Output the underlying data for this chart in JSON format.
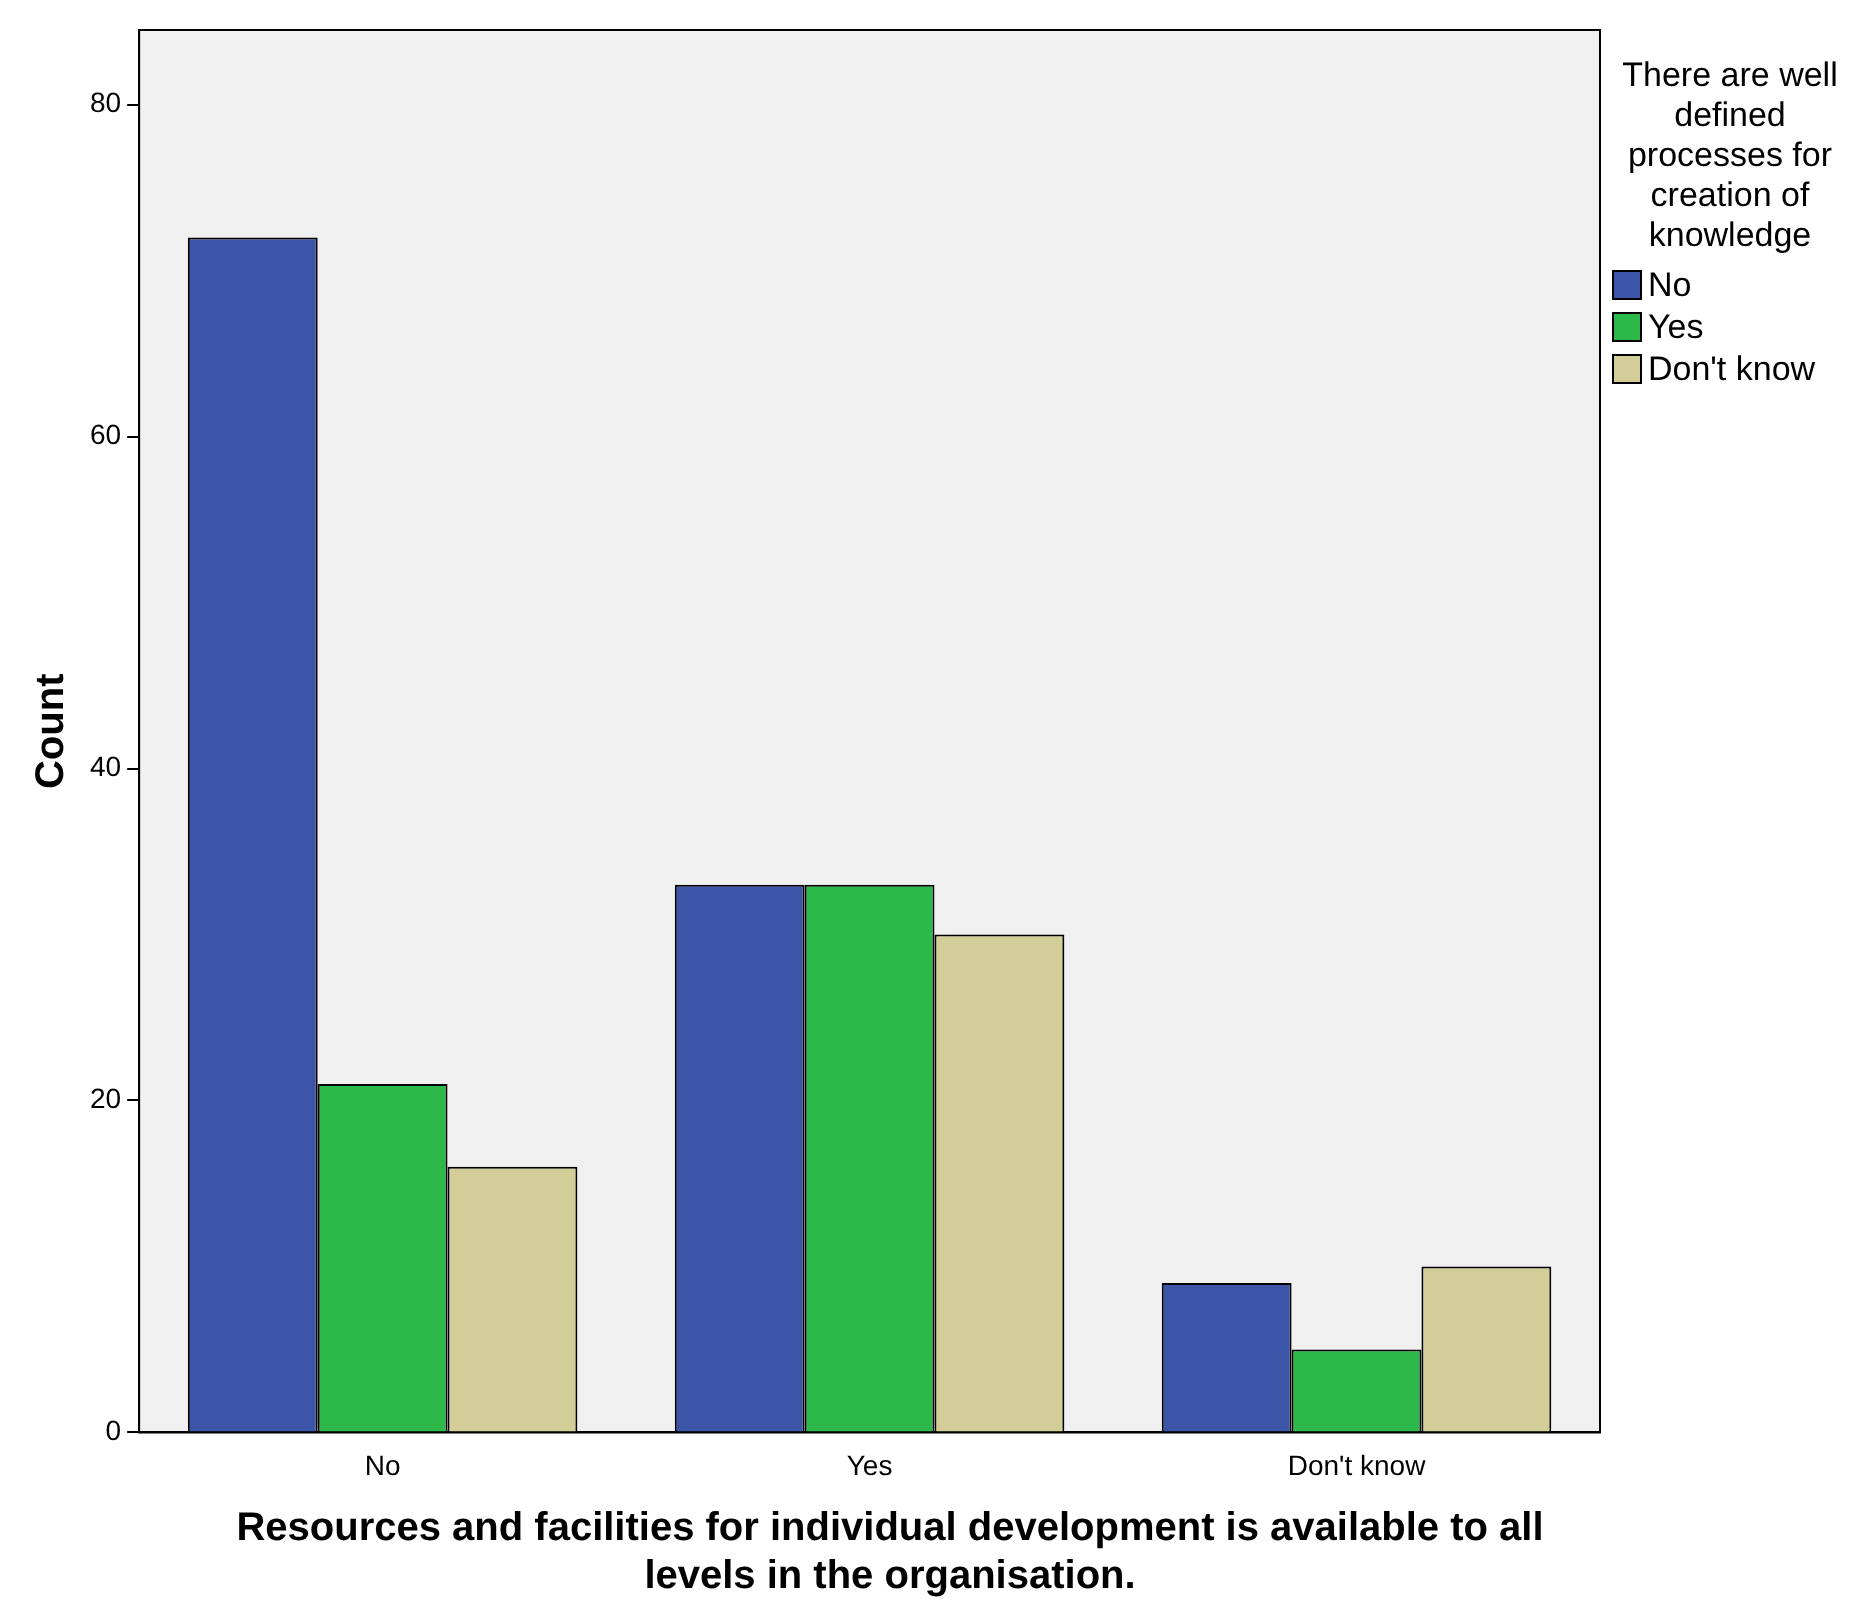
{
  "chart_data": {
    "type": "bar",
    "xlabel": "Resources and facilities for individual development is available to all levels in the organisation.",
    "ylabel": "Count",
    "legend_title": "There are well defined processes for creation of knowledge",
    "categories": [
      "No",
      "Yes",
      "Don't know"
    ],
    "series": [
      {
        "name": "No",
        "color": "#3d55a8",
        "values": [
          72,
          33,
          9
        ]
      },
      {
        "name": "Yes",
        "color": "#2db84a",
        "values": [
          21,
          33,
          5
        ]
      },
      {
        "name": "Don't know",
        "color": "#d3cd97",
        "values": [
          16,
          30,
          10
        ]
      }
    ],
    "ylim": [
      0,
      84.5
    ],
    "yticks": [
      0,
      20,
      40,
      60,
      80
    ],
    "grid": false,
    "legend": "right"
  }
}
